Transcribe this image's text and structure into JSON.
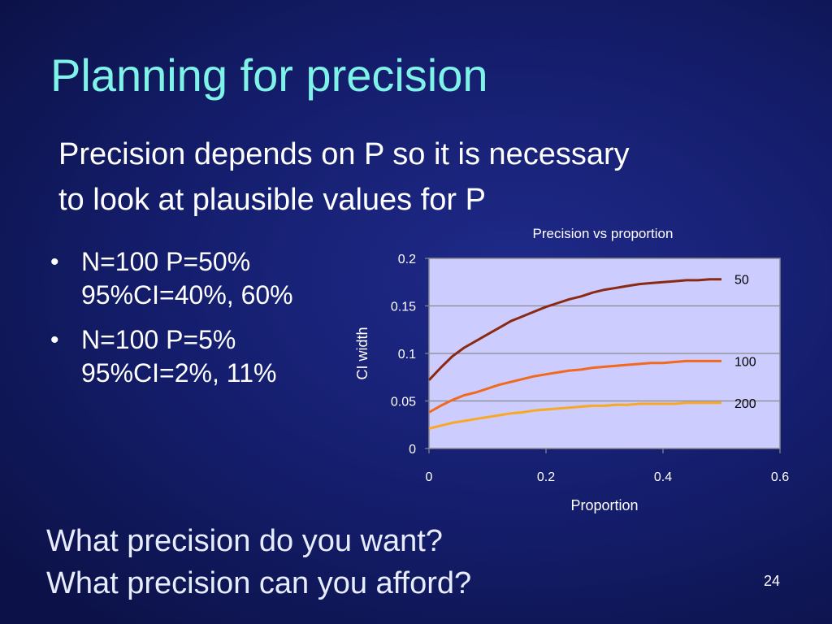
{
  "slide": {
    "title": "Planning for precision",
    "subtitle_lines": [
      "Precision depends on P so it is necessary",
      "to look at plausible values for P"
    ],
    "bullets": [
      {
        "lines": [
          "N=100 P=50%",
          "95%CI=40%, 60%"
        ]
      },
      {
        "lines": [
          "N=100 P=5%",
          "95%CI=2%, 11%"
        ]
      }
    ],
    "questions": [
      "What precision do you want?",
      "What precision can you afford?"
    ],
    "page_number": "24"
  },
  "chart_data": {
    "type": "line",
    "title": "Precision vs proportion",
    "xlabel": "Proportion",
    "ylabel": "CI width",
    "xlim": [
      0,
      0.6
    ],
    "ylim": [
      0,
      0.2
    ],
    "x_ticks": [
      "0",
      "0.2",
      "0.4",
      "0.6"
    ],
    "y_ticks": [
      "0",
      "0.05",
      "0.1",
      "0.15",
      "0.2"
    ],
    "grid": "horizontal",
    "legend": "end-of-line labels",
    "x": [
      0.0,
      0.02,
      0.04,
      0.06,
      0.08,
      0.1,
      0.12,
      0.14,
      0.16,
      0.18,
      0.2,
      0.22,
      0.24,
      0.26,
      0.28,
      0.3,
      0.32,
      0.34,
      0.36,
      0.38,
      0.4,
      0.42,
      0.44,
      0.46,
      0.48,
      0.5
    ],
    "series": [
      {
        "name": "50",
        "color": "#8b2a12",
        "values": [
          0.072,
          0.085,
          0.097,
          0.106,
          0.113,
          0.12,
          0.127,
          0.134,
          0.139,
          0.144,
          0.149,
          0.153,
          0.157,
          0.16,
          0.164,
          0.167,
          0.169,
          0.171,
          0.173,
          0.174,
          0.175,
          0.176,
          0.177,
          0.177,
          0.178,
          0.178
        ]
      },
      {
        "name": "100",
        "color": "#f06a1e",
        "values": [
          0.038,
          0.045,
          0.051,
          0.056,
          0.059,
          0.063,
          0.067,
          0.07,
          0.073,
          0.076,
          0.078,
          0.08,
          0.082,
          0.083,
          0.085,
          0.086,
          0.087,
          0.088,
          0.089,
          0.09,
          0.09,
          0.091,
          0.092,
          0.092,
          0.092,
          0.092
        ]
      },
      {
        "name": "200",
        "color": "#f9a826",
        "values": [
          0.021,
          0.024,
          0.027,
          0.029,
          0.031,
          0.033,
          0.035,
          0.037,
          0.038,
          0.04,
          0.041,
          0.042,
          0.043,
          0.044,
          0.045,
          0.045,
          0.046,
          0.046,
          0.047,
          0.047,
          0.047,
          0.047,
          0.048,
          0.048,
          0.048,
          0.048
        ]
      }
    ],
    "plot_background": "#ccccff"
  }
}
